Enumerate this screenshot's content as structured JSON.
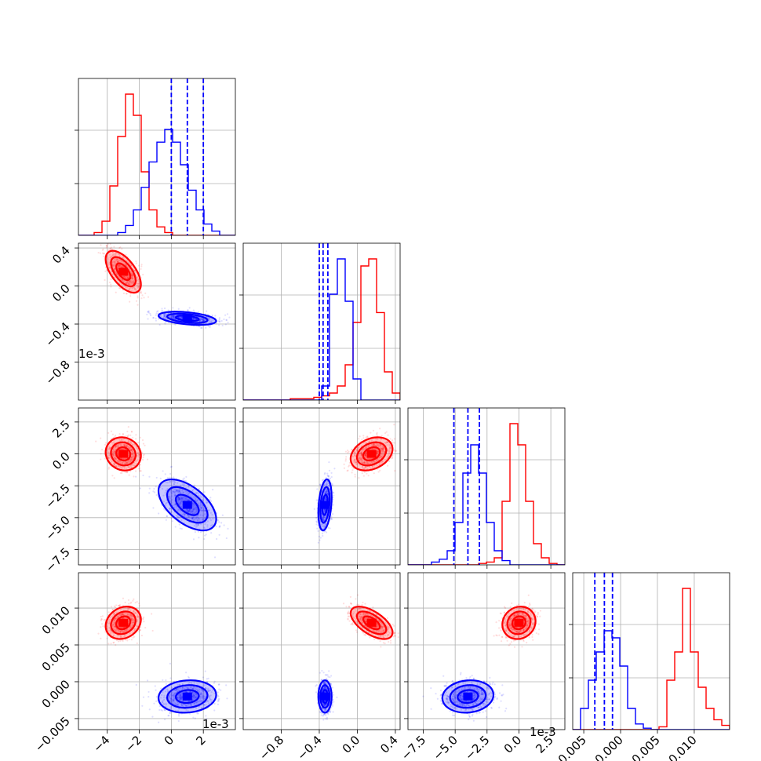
{
  "figure": {
    "kind": "corner-plot",
    "parameters": 4,
    "colors": {
      "red_run": "#ff0000",
      "blue_run": "#0000ff",
      "grid": "#b0b0b0",
      "frame": "#000000"
    },
    "offset_labels": {
      "row1_y": "1e-3",
      "col0_x": "1e-3",
      "col2_x": "1e-3"
    }
  },
  "chart_data": {
    "type": "corner",
    "series": [
      {
        "name": "",
        "color": "#ff0000",
        "means": [
          -3.0,
          0.15,
          0.0,
          0.008
        ],
        "sds": [
          0.55,
          0.11,
          0.65,
          0.0011
        ]
      },
      {
        "name": "",
        "color": "#0000ff",
        "means": [
          1.0,
          -0.34,
          -4.0,
          -0.002
        ],
        "sds": [
          0.9,
          0.035,
          1.0,
          0.0011
        ],
        "quantile_lines": [
          [
            0.0,
            1.0,
            2.0
          ],
          [
            -0.4,
            -0.36,
            -0.31
          ],
          [
            -5.1,
            -4.0,
            -3.1
          ],
          [
            -0.0035,
            -0.0022,
            -0.0011
          ]
        ]
      }
    ],
    "axes": [
      {
        "range": [
          -5.8,
          4.0
        ],
        "ticks": [
          -4,
          -2,
          0,
          2
        ],
        "tick_labels": [
          "−4",
          "−2",
          "0",
          "2"
        ],
        "offset": "1e-3"
      },
      {
        "range": [
          -1.2,
          0.45
        ],
        "ticks": [
          -0.8,
          -0.4,
          0.0,
          0.4
        ],
        "tick_labels": [
          "−0.8",
          "−0.4",
          "0.0",
          "0.4"
        ],
        "offset": ""
      },
      {
        "range": [
          -8.7,
          3.6
        ],
        "ticks": [
          -7.5,
          -5.0,
          -2.5,
          0.0,
          2.5
        ],
        "tick_labels": [
          "−7.5",
          "−5.0",
          "−2.5",
          "0.0",
          "2.5"
        ],
        "offset": "1e-3"
      },
      {
        "range": [
          -0.0065,
          0.0148
        ],
        "ticks": [
          -0.005,
          0.0,
          0.005,
          0.01
        ],
        "tick_labels": [
          "−0.005",
          "0.000",
          "0.005",
          "0.010"
        ],
        "offset": ""
      }
    ],
    "histograms": {
      "red": [
        [
          0,
          0,
          0.02,
          0.1,
          0.35,
          0.7,
          1.0,
          0.85,
          0.45,
          0.18,
          0.06,
          0.02,
          0,
          0,
          0,
          0,
          0,
          0,
          0,
          0
        ],
        [
          0,
          0,
          0,
          0,
          0,
          0,
          0.01,
          0.01,
          0.01,
          0.02,
          0.03,
          0.05,
          0.1,
          0.25,
          0.55,
          0.95,
          1.0,
          0.62,
          0.2,
          0.05
        ],
        [
          0,
          0,
          0,
          0,
          0,
          0,
          0,
          0,
          0,
          0.01,
          0.02,
          0.05,
          0.45,
          1.0,
          0.85,
          0.45,
          0.15,
          0.05,
          0.01,
          0
        ],
        [
          0,
          0,
          0,
          0,
          0,
          0,
          0,
          0,
          0,
          0,
          0,
          0.02,
          0.35,
          0.55,
          1.0,
          0.55,
          0.3,
          0.15,
          0.07,
          0.03
        ]
      ],
      "blue": [
        [
          0,
          0,
          0,
          0,
          0,
          0.02,
          0.07,
          0.18,
          0.34,
          0.52,
          0.66,
          0.75,
          0.66,
          0.5,
          0.32,
          0.18,
          0.08,
          0.03,
          0,
          0
        ],
        [
          0,
          0,
          0,
          0,
          0,
          0,
          0,
          0,
          0,
          0,
          0.1,
          0.75,
          1.0,
          0.7,
          0.15,
          0,
          0,
          0,
          0,
          0
        ],
        [
          0,
          0,
          0,
          0.02,
          0.04,
          0.1,
          0.3,
          0.65,
          0.85,
          0.65,
          0.3,
          0.1,
          0.03,
          0,
          0,
          0,
          0,
          0,
          0,
          0
        ],
        [
          0,
          0.15,
          0.35,
          0.55,
          0.7,
          0.65,
          0.45,
          0.15,
          0.04,
          0.01,
          0,
          0,
          0,
          0,
          0,
          0,
          0,
          0,
          0,
          0
        ]
      ]
    },
    "correlations": {
      "red": {
        "1,0": -0.6,
        "2,0": -0.1,
        "2,1": 0.3,
        "3,0": 0.2,
        "3,1": -0.6,
        "3,2": 0.1
      },
      "blue": {
        "1,0": -0.4,
        "2,0": -0.55,
        "2,1": 0.3,
        "3,0": 0.1,
        "3,1": 0.0,
        "3,2": 0.1
      }
    },
    "grid": true
  }
}
